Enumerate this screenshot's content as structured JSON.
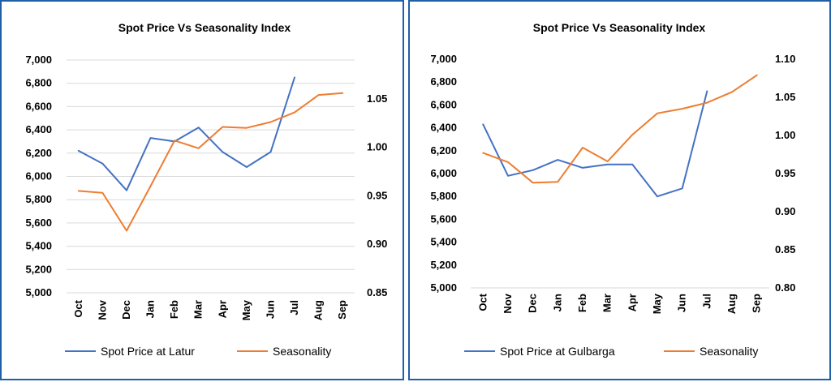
{
  "colors": {
    "price": "#4472c4",
    "seasonality": "#ed7d31",
    "grid": "#d9d9d9",
    "frame": "#1f5fa8"
  },
  "chart_data": [
    {
      "type": "line",
      "title": "Spot Price Vs Seasonality Index",
      "categories": [
        "Oct",
        "Nov",
        "Dec",
        "Jan",
        "Feb",
        "Mar",
        "Apr",
        "May",
        "Jun",
        "Jul",
        "Aug",
        "Sep"
      ],
      "left_axis": {
        "ylim": [
          5000,
          7000
        ],
        "ticks": [
          "5,000",
          "5,200",
          "5,400",
          "5,600",
          "5,800",
          "6,000",
          "6,200",
          "6,400",
          "6,600",
          "6,800",
          "7,000"
        ]
      },
      "right_axis": {
        "ylim": [
          0.85,
          1.09
        ],
        "ticks": [
          "0.85",
          "0.90",
          "0.95",
          "1.00",
          "1.05"
        ]
      },
      "grid": true,
      "legend_position": "bottom",
      "series": [
        {
          "name": "Spot Price at Latur",
          "axis": "left",
          "color": "#4472c4",
          "values": [
            6220,
            6110,
            5880,
            6330,
            6300,
            6420,
            6210,
            6080,
            6210,
            6850,
            null,
            null
          ]
        },
        {
          "name": "Seasonality",
          "axis": "right",
          "color": "#ed7d31",
          "values": [
            0.955,
            0.953,
            0.914,
            0.96,
            1.007,
            0.999,
            1.021,
            1.02,
            1.026,
            1.036,
            1.054,
            1.056
          ]
        }
      ]
    },
    {
      "type": "line",
      "title": "Spot Price Vs Seasonality Index",
      "categories": [
        "Oct",
        "Nov",
        "Dec",
        "Jan",
        "Feb",
        "Mar",
        "Apr",
        "May",
        "Jun",
        "Jul",
        "Aug",
        "Sep"
      ],
      "left_axis": {
        "ylim": [
          5000,
          7000
        ],
        "ticks": [
          "5,000",
          "5,200",
          "5,400",
          "5,600",
          "5,800",
          "6,000",
          "6,200",
          "6,400",
          "6,600",
          "6,800",
          "7,000"
        ]
      },
      "right_axis": {
        "ylim": [
          0.8,
          1.1
        ],
        "ticks": [
          "0.80",
          "0.85",
          "0.90",
          "0.95",
          "1.00",
          "1.05",
          "1.10"
        ]
      },
      "grid": false,
      "legend_position": "bottom",
      "series": [
        {
          "name": "Spot Price at Gulbarga",
          "axis": "left",
          "color": "#4472c4",
          "values": [
            6430,
            5980,
            6030,
            6120,
            6050,
            6080,
            6080,
            5800,
            5870,
            6720,
            null,
            null
          ]
        },
        {
          "name": "Seasonality",
          "axis": "right",
          "color": "#ed7d31",
          "values": [
            0.977,
            0.965,
            0.938,
            0.939,
            0.984,
            0.966,
            1.001,
            1.029,
            1.035,
            1.043,
            1.057,
            1.079
          ]
        }
      ]
    }
  ]
}
